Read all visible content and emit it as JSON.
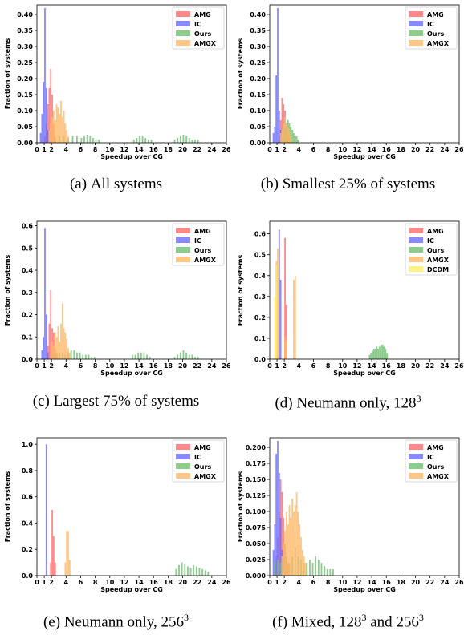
{
  "colors": {
    "AMG": "#ff6b6b",
    "IC": "#6b6bff",
    "Ours": "#6fbf6f",
    "AMGX": "#ffb866",
    "DCDM": "#ffee66",
    "red_tick": "#dd0000"
  },
  "axis": {
    "xlabel": "Speedup over CG",
    "ylabel": "Fraction of systems",
    "xlim": [
      0,
      26
    ],
    "xticks": [
      "0",
      "1",
      "2",
      "4",
      "6",
      "8",
      "10",
      "12",
      "14",
      "16",
      "18",
      "20",
      "22",
      "24",
      "26"
    ],
    "highlight_tick": "1"
  },
  "captions": [
    {
      "label": "(a)",
      "text": "All systems",
      "sup": ""
    },
    {
      "label": "(b)",
      "text": "Smallest 25% of systems",
      "sup": ""
    },
    {
      "label": "(c)",
      "text": "Largest 75% of systems",
      "sup": ""
    },
    {
      "label": "(d)",
      "text": "Neumann only, 128",
      "sup": "3"
    },
    {
      "label": "(e)",
      "text": "Neumann only, 256",
      "sup": "3"
    },
    {
      "label": "(f)",
      "text": "Mixed, 128",
      "sup": "3",
      "text2": " and 256",
      "sup2": "3"
    }
  ],
  "chart_data": [
    {
      "type": "bar",
      "title": "",
      "xlabel": "Speedup over CG",
      "ylabel": "Fraction of systems",
      "ylim": [
        0,
        0.43
      ],
      "yticks": [
        "0.00",
        "0.05",
        "0.10",
        "0.15",
        "0.20",
        "0.25",
        "0.30",
        "0.35",
        "0.40"
      ],
      "legend": [
        "AMG",
        "IC",
        "Ours",
        "AMGX"
      ],
      "legend_position": "top-right",
      "bin_width": 0.2,
      "series": [
        {
          "name": "AMG",
          "x": [
            1.0,
            1.2,
            1.4,
            1.6,
            1.8,
            2.0,
            2.2,
            2.4
          ],
          "values": [
            0.02,
            0.06,
            0.12,
            0.17,
            0.23,
            0.15,
            0.06,
            0.02
          ]
        },
        {
          "name": "IC",
          "x": [
            0.4,
            0.6,
            0.8,
            1.0,
            1.2,
            1.4
          ],
          "values": [
            0.03,
            0.09,
            0.19,
            0.42,
            0.17,
            0.04
          ]
        },
        {
          "name": "Ours",
          "x": [
            1.8,
            2.4,
            3.0,
            3.6,
            4.2,
            4.8,
            5.4,
            6.0,
            6.4,
            6.8,
            7.2,
            7.6,
            8.0,
            8.4,
            13.2,
            13.6,
            14.0,
            14.4,
            14.8,
            15.2,
            15.6,
            18.8,
            19.2,
            19.6,
            20.0,
            20.4,
            20.8,
            21.2,
            21.6,
            22.0
          ],
          "values": [
            0.01,
            0.015,
            0.02,
            0.02,
            0.015,
            0.02,
            0.02,
            0.015,
            0.02,
            0.025,
            0.02,
            0.015,
            0.01,
            0.01,
            0.01,
            0.015,
            0.02,
            0.02,
            0.015,
            0.01,
            0.01,
            0.01,
            0.015,
            0.02,
            0.025,
            0.02,
            0.015,
            0.01,
            0.01,
            0.01
          ]
        },
        {
          "name": "AMGX",
          "x": [
            1.6,
            1.8,
            2.0,
            2.2,
            2.4,
            2.6,
            2.8,
            3.0,
            3.2,
            3.4,
            3.6,
            3.8,
            4.0,
            4.2
          ],
          "values": [
            0.04,
            0.06,
            0.08,
            0.1,
            0.07,
            0.12,
            0.11,
            0.09,
            0.13,
            0.08,
            0.1,
            0.06,
            0.04,
            0.02
          ]
        }
      ]
    },
    {
      "type": "bar",
      "title": "",
      "xlabel": "Speedup over CG",
      "ylabel": "Fraction of systems",
      "ylim": [
        0,
        0.43
      ],
      "yticks": [
        "0.00",
        "0.05",
        "0.10",
        "0.15",
        "0.20",
        "0.25",
        "0.30",
        "0.35",
        "0.40"
      ],
      "legend": [
        "AMG",
        "IC",
        "Ours",
        "AMGX"
      ],
      "legend_position": "top-right",
      "bin_width": 0.2,
      "series": [
        {
          "name": "AMG",
          "x": [
            1.2,
            1.4,
            1.6,
            1.8,
            2.0,
            2.2,
            2.4,
            2.6
          ],
          "values": [
            0.02,
            0.07,
            0.14,
            0.12,
            0.1,
            0.05,
            0.03,
            0.02
          ]
        },
        {
          "name": "IC",
          "x": [
            0.4,
            0.6,
            0.8,
            1.0,
            1.2,
            1.4
          ],
          "values": [
            0.03,
            0.05,
            0.21,
            0.42,
            0.1,
            0.04
          ]
        },
        {
          "name": "Ours",
          "x": [
            1.6,
            1.8,
            2.0,
            2.2,
            2.4,
            2.6,
            2.8,
            3.0,
            3.2,
            3.4,
            3.6,
            3.8
          ],
          "values": [
            0.02,
            0.04,
            0.05,
            0.06,
            0.07,
            0.06,
            0.05,
            0.04,
            0.03,
            0.02,
            0.02,
            0.01
          ]
        },
        {
          "name": "AMGX",
          "x": [
            1.4,
            1.6,
            1.8,
            2.0,
            2.2,
            2.4,
            2.6,
            2.8
          ],
          "values": [
            0.03,
            0.04,
            0.06,
            0.08,
            0.06,
            0.05,
            0.04,
            0.02
          ]
        }
      ]
    },
    {
      "type": "bar",
      "title": "",
      "xlabel": "Speedup over CG",
      "ylabel": "Fraction of systems",
      "ylim": [
        0,
        0.62
      ],
      "yticks": [
        "0.0",
        "0.1",
        "0.2",
        "0.3",
        "0.4",
        "0.5",
        "0.6"
      ],
      "legend": [
        "AMG",
        "IC",
        "Ours",
        "AMGX"
      ],
      "legend_position": "top-right",
      "bin_width": 0.2,
      "series": [
        {
          "name": "AMG",
          "x": [
            1.4,
            1.6,
            1.8,
            2.0,
            2.2,
            2.4,
            2.6
          ],
          "values": [
            0.06,
            0.16,
            0.31,
            0.14,
            0.12,
            0.05,
            0.02
          ]
        },
        {
          "name": "IC",
          "x": [
            0.6,
            0.8,
            1.0,
            1.2,
            1.4
          ],
          "values": [
            0.04,
            0.1,
            0.59,
            0.2,
            0.03
          ]
        },
        {
          "name": "Ours",
          "x": [
            2.2,
            2.6,
            3.0,
            3.4,
            3.8,
            4.2,
            4.6,
            5.0,
            5.4,
            5.8,
            6.2,
            6.6,
            7.0,
            7.4,
            7.8,
            13.0,
            13.4,
            13.8,
            14.2,
            14.6,
            15.0,
            15.4,
            18.8,
            19.2,
            19.6,
            20.0,
            20.4,
            20.8,
            21.2,
            21.6,
            22.0
          ],
          "values": [
            0.02,
            0.03,
            0.03,
            0.03,
            0.02,
            0.03,
            0.04,
            0.04,
            0.03,
            0.03,
            0.02,
            0.02,
            0.02,
            0.01,
            0.01,
            0.02,
            0.02,
            0.03,
            0.03,
            0.03,
            0.02,
            0.01,
            0.01,
            0.02,
            0.03,
            0.04,
            0.03,
            0.02,
            0.02,
            0.01,
            0.01
          ]
        },
        {
          "name": "AMGX",
          "x": [
            2.0,
            2.2,
            2.4,
            2.6,
            2.8,
            3.0,
            3.2,
            3.4,
            3.6,
            3.8,
            4.0,
            4.2,
            4.4
          ],
          "values": [
            0.08,
            0.06,
            0.12,
            0.1,
            0.15,
            0.08,
            0.16,
            0.25,
            0.14,
            0.12,
            0.09,
            0.05,
            0.03
          ]
        }
      ]
    },
    {
      "type": "bar",
      "title": "",
      "xlabel": "Speedup over CG",
      "ylabel": "Fraction of systems",
      "ylim": [
        0,
        0.66
      ],
      "yticks": [
        "0.0",
        "0.1",
        "0.2",
        "0.3",
        "0.4",
        "0.5",
        "0.6"
      ],
      "legend": [
        "AMG",
        "IC",
        "Ours",
        "AMGX",
        "DCDM"
      ],
      "legend_position": "top-right",
      "bin_width": 0.2,
      "series": [
        {
          "name": "AMG",
          "x": [
            2.0,
            2.2
          ],
          "values": [
            0.58,
            0.26
          ]
        },
        {
          "name": "IC",
          "x": [
            1.2,
            1.4
          ],
          "values": [
            0.62,
            0.38
          ]
        },
        {
          "name": "Ours",
          "x": [
            13.6,
            13.8,
            14.0,
            14.2,
            14.4,
            14.6,
            14.8,
            15.0,
            15.2,
            15.4,
            15.6,
            15.8,
            16.0
          ],
          "values": [
            0.02,
            0.03,
            0.04,
            0.05,
            0.05,
            0.06,
            0.05,
            0.06,
            0.07,
            0.07,
            0.06,
            0.05,
            0.03
          ]
        },
        {
          "name": "AMGX",
          "x": [
            0.8,
            1.0,
            2.0,
            2.2,
            3.2,
            3.4
          ],
          "values": [
            0.47,
            0.53,
            0.11,
            0.09,
            0.38,
            0.4
          ]
        },
        {
          "name": "DCDM",
          "x": [
            0.6,
            0.8
          ],
          "values": [
            0.3,
            0.45
          ]
        }
      ]
    },
    {
      "type": "bar",
      "title": "",
      "xlabel": "Speedup over CG",
      "ylabel": "Fraction of systems",
      "ylim": [
        0,
        1.05
      ],
      "yticks": [
        "0.0",
        "0.2",
        "0.4",
        "0.6",
        "0.8",
        "1.0"
      ],
      "legend": [
        "AMG",
        "IC",
        "Ours",
        "AMGX"
      ],
      "legend_position": "top-right",
      "bin_width": 0.2,
      "series": [
        {
          "name": "AMG",
          "x": [
            1.8,
            2.0,
            2.2,
            2.4
          ],
          "values": [
            0.1,
            0.5,
            0.3,
            0.1
          ]
        },
        {
          "name": "IC",
          "x": [
            1.2
          ],
          "values": [
            1.0
          ]
        },
        {
          "name": "Ours",
          "x": [
            19.0,
            19.4,
            19.8,
            20.2,
            20.6,
            21.0,
            21.4,
            21.8,
            22.2,
            22.6,
            23.0,
            23.4
          ],
          "values": [
            0.05,
            0.08,
            0.1,
            0.09,
            0.07,
            0.06,
            0.08,
            0.07,
            0.06,
            0.05,
            0.04,
            0.03
          ]
        },
        {
          "name": "AMGX",
          "x": [
            3.8,
            4.0,
            4.2,
            4.4
          ],
          "values": [
            0.1,
            0.34,
            0.34,
            0.12
          ]
        }
      ]
    },
    {
      "type": "bar",
      "title": "",
      "xlabel": "Speedup over CG",
      "ylabel": "Fraction of systems",
      "ylim": [
        0,
        0.215
      ],
      "yticks": [
        "0.000",
        "0.025",
        "0.050",
        "0.075",
        "0.100",
        "0.125",
        "0.150",
        "0.175",
        "0.200"
      ],
      "legend": [
        "AMG",
        "IC",
        "Ours",
        "AMGX"
      ],
      "legend_position": "top-right",
      "bin_width": 0.2,
      "series": [
        {
          "name": "AMG",
          "x": [
            0.8,
            1.0,
            1.2,
            1.4,
            1.6,
            1.8,
            2.0,
            2.2,
            2.4
          ],
          "values": [
            0.03,
            0.06,
            0.1,
            0.15,
            0.13,
            0.09,
            0.05,
            0.03,
            0.02
          ]
        },
        {
          "name": "IC",
          "x": [
            0.4,
            0.6,
            0.8,
            1.0,
            1.2,
            1.4,
            1.6
          ],
          "values": [
            0.04,
            0.08,
            0.19,
            0.21,
            0.16,
            0.09,
            0.04
          ]
        },
        {
          "name": "Ours",
          "x": [
            0.6,
            1.0,
            1.4,
            1.8,
            2.2,
            2.6,
            3.0,
            3.4,
            3.8,
            4.2,
            4.6,
            5.0,
            5.4,
            5.8,
            6.2,
            6.6,
            7.0,
            7.4,
            7.8,
            8.2,
            8.6
          ],
          "values": [
            0.02,
            0.025,
            0.02,
            0.03,
            0.025,
            0.02,
            0.03,
            0.045,
            0.03,
            0.025,
            0.02,
            0.02,
            0.025,
            0.02,
            0.03,
            0.025,
            0.02,
            0.015,
            0.01,
            0.01,
            0.01
          ]
        },
        {
          "name": "AMGX",
          "x": [
            1.6,
            1.8,
            2.0,
            2.2,
            2.4,
            2.6,
            2.8,
            3.0,
            3.2,
            3.4,
            3.6,
            3.8,
            4.0,
            4.2,
            4.4,
            4.6,
            4.8
          ],
          "values": [
            0.03,
            0.05,
            0.07,
            0.1,
            0.08,
            0.11,
            0.09,
            0.12,
            0.1,
            0.11,
            0.13,
            0.1,
            0.08,
            0.06,
            0.04,
            0.03,
            0.02
          ]
        }
      ]
    }
  ]
}
